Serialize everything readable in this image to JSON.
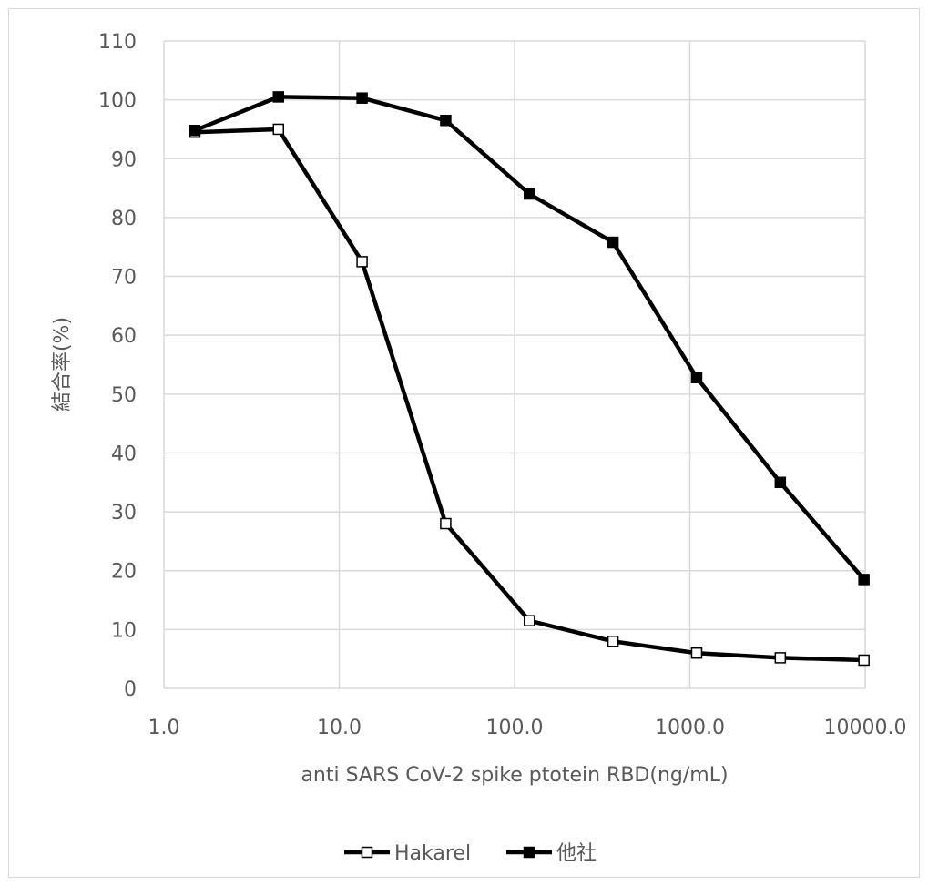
{
  "chart_data": {
    "type": "line",
    "x_scale": "log",
    "xlabel": "anti SARS CoV-2 spike ptotein RBD(ng/mL)",
    "ylabel": "結合率(%)",
    "xlim": [
      1.0,
      10000.0
    ],
    "ylim": [
      0,
      110
    ],
    "x_ticks": [
      "1.0",
      "10.0",
      "100.0",
      "1000.0",
      "10000.0"
    ],
    "y_ticks": [
      "0",
      "10",
      "20",
      "30",
      "40",
      "50",
      "60",
      "70",
      "80",
      "90",
      "100",
      "110"
    ],
    "grid": true,
    "legend_position": "bottom",
    "series": [
      {
        "name": "Hakarel",
        "marker": "open-square",
        "color": "#000000",
        "x": [
          1.5,
          4.5,
          13.5,
          40.5,
          121.5,
          364.5,
          1093.5,
          3280.5,
          9841.5
        ],
        "y": [
          94.5,
          95,
          72.5,
          28,
          11.5,
          8,
          6,
          5.2,
          4.8
        ]
      },
      {
        "name": "他社",
        "marker": "filled-square",
        "color": "#000000",
        "x": [
          1.5,
          4.5,
          13.5,
          40.5,
          121.5,
          364.5,
          1093.5,
          3280.5,
          9841.5
        ],
        "y": [
          94.8,
          100.5,
          100.3,
          96.5,
          84,
          75.8,
          52.8,
          35,
          18.5
        ]
      }
    ]
  }
}
